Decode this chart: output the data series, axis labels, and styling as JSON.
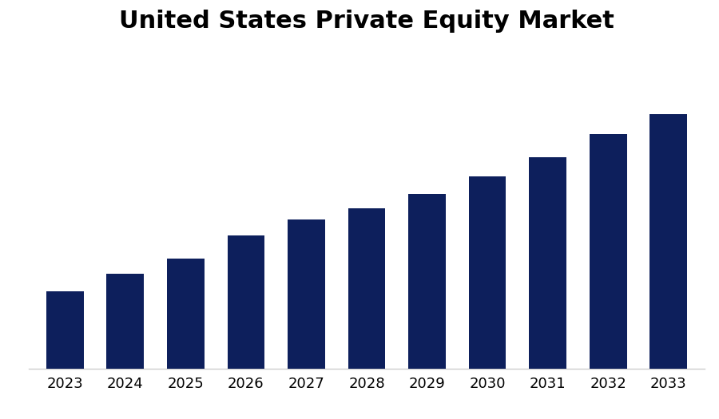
{
  "title": "United States Private Equity Market",
  "title_fontsize": 22,
  "title_fontweight": "bold",
  "categories": [
    "2023",
    "2024",
    "2025",
    "2026",
    "2027",
    "2028",
    "2029",
    "2030",
    "2031",
    "2032",
    "2033"
  ],
  "values": [
    1.0,
    1.22,
    1.42,
    1.72,
    1.92,
    2.07,
    2.25,
    2.48,
    2.72,
    3.02,
    3.28
  ],
  "bar_color": "#0D1F5C",
  "background_color": "#ffffff",
  "bar_width": 0.62,
  "ylim": [
    0,
    4.1
  ],
  "tick_fontsize": 13,
  "spine_color": "#cccccc"
}
